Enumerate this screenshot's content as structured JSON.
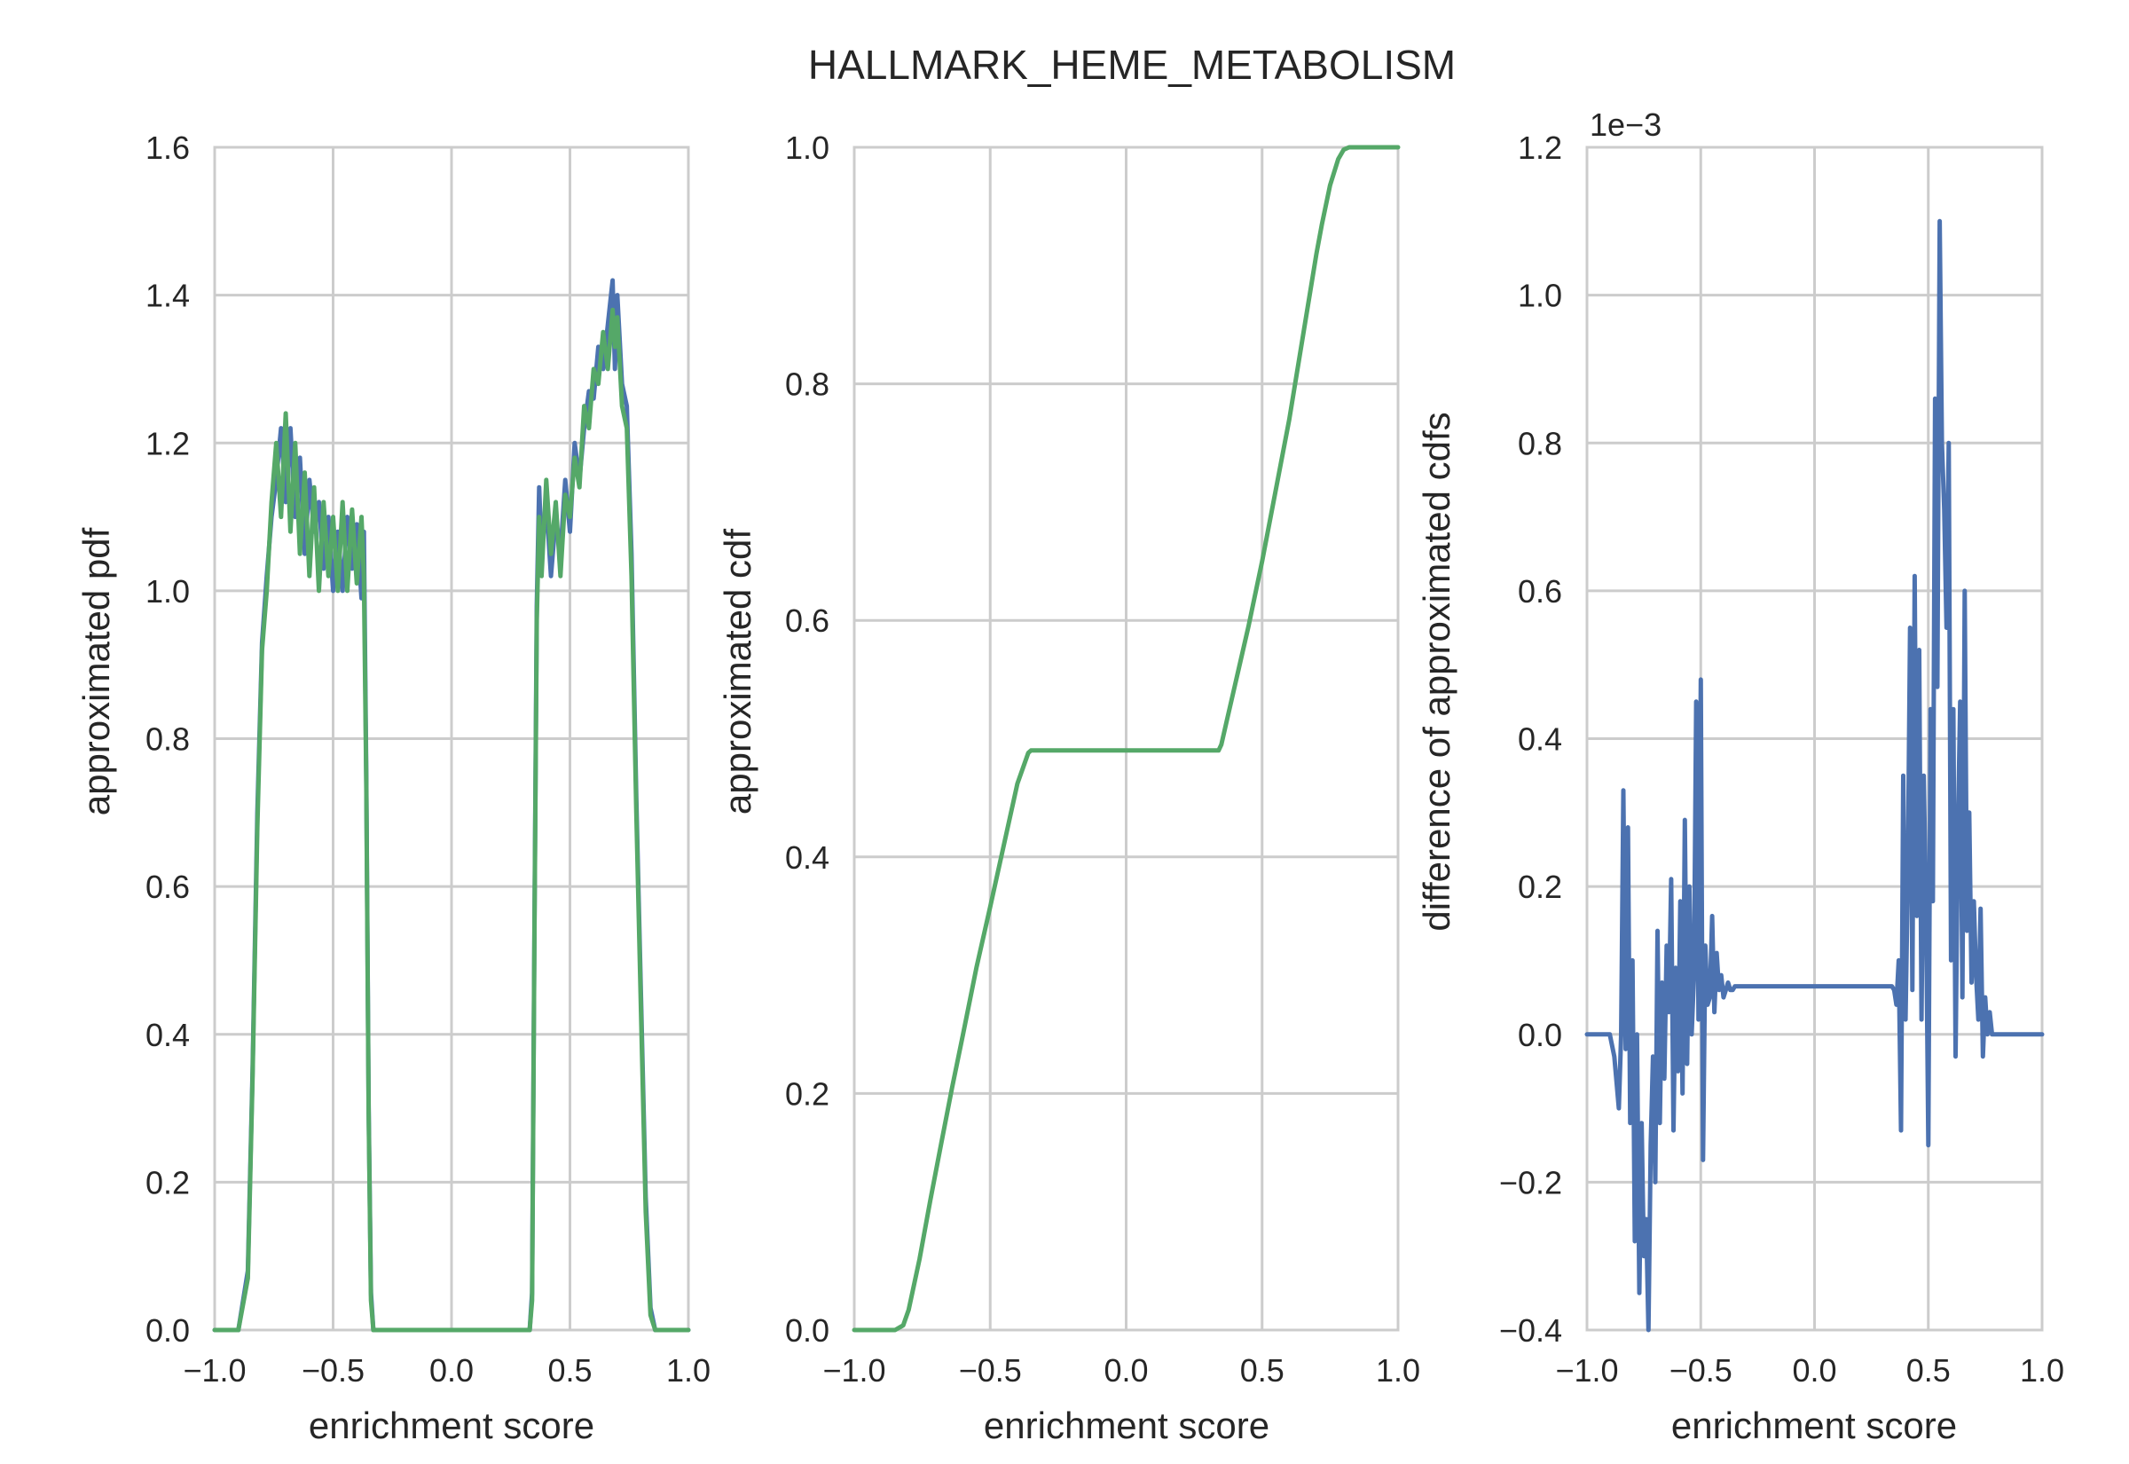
{
  "figure": {
    "title": "HALLMARK_HEME_METABOLISM",
    "colors": {
      "blue": "#4c72b0",
      "green": "#55a868",
      "grid": "#cccccc",
      "text": "#262626"
    }
  },
  "chart_data": [
    {
      "type": "line",
      "xlabel": "enrichment score",
      "ylabel": "approximated pdf",
      "xlim": [
        -1.0,
        1.0
      ],
      "ylim": [
        0.0,
        1.6
      ],
      "xticks": [
        "−1.0",
        "−0.5",
        "0.0",
        "0.5",
        "1.0"
      ],
      "yticks": [
        "0.0",
        "0.2",
        "0.4",
        "0.6",
        "0.8",
        "1.0",
        "1.2",
        "1.4",
        "1.6"
      ],
      "grid": true,
      "series": [
        {
          "color": "#4c72b0",
          "x": [
            -1.0,
            -0.9,
            -0.86,
            -0.84,
            -0.82,
            -0.8,
            -0.78,
            -0.76,
            -0.74,
            -0.72,
            -0.7,
            -0.68,
            -0.66,
            -0.64,
            -0.62,
            -0.6,
            -0.58,
            -0.56,
            -0.54,
            -0.52,
            -0.5,
            -0.48,
            -0.46,
            -0.44,
            -0.42,
            -0.4,
            -0.38,
            -0.37,
            -0.36,
            -0.35,
            -0.34,
            -0.33,
            0.0,
            0.33,
            0.34,
            0.35,
            0.36,
            0.37,
            0.38,
            0.4,
            0.42,
            0.44,
            0.46,
            0.48,
            0.5,
            0.52,
            0.54,
            0.56,
            0.58,
            0.6,
            0.62,
            0.64,
            0.66,
            0.68,
            0.69,
            0.7,
            0.72,
            0.74,
            0.76,
            0.78,
            0.8,
            0.82,
            0.84,
            0.86,
            0.9,
            1.0
          ],
          "y": [
            0.0,
            0.0,
            0.08,
            0.35,
            0.7,
            0.93,
            1.02,
            1.1,
            1.15,
            1.22,
            1.12,
            1.22,
            1.1,
            1.18,
            1.05,
            1.15,
            1.08,
            1.12,
            1.03,
            1.1,
            1.0,
            1.08,
            1.0,
            1.1,
            1.03,
            1.09,
            0.99,
            1.08,
            0.75,
            0.3,
            0.05,
            0.0,
            0.0,
            0.0,
            0.05,
            0.55,
            0.98,
            1.14,
            1.05,
            1.12,
            1.02,
            1.1,
            1.05,
            1.15,
            1.08,
            1.2,
            1.15,
            1.22,
            1.27,
            1.26,
            1.33,
            1.3,
            1.36,
            1.42,
            1.3,
            1.4,
            1.28,
            1.25,
            1.05,
            0.72,
            0.45,
            0.18,
            0.03,
            0.0,
            0.0,
            0.0
          ]
        },
        {
          "color": "#55a868",
          "x": [
            -1.0,
            -0.9,
            -0.86,
            -0.84,
            -0.82,
            -0.8,
            -0.78,
            -0.76,
            -0.74,
            -0.72,
            -0.7,
            -0.68,
            -0.66,
            -0.64,
            -0.62,
            -0.6,
            -0.58,
            -0.56,
            -0.54,
            -0.52,
            -0.5,
            -0.48,
            -0.46,
            -0.44,
            -0.42,
            -0.4,
            -0.38,
            -0.37,
            -0.36,
            -0.35,
            -0.34,
            -0.33,
            0.0,
            0.33,
            0.34,
            0.35,
            0.36,
            0.37,
            0.38,
            0.4,
            0.42,
            0.44,
            0.46,
            0.48,
            0.5,
            0.52,
            0.54,
            0.56,
            0.58,
            0.6,
            0.62,
            0.64,
            0.66,
            0.68,
            0.69,
            0.7,
            0.72,
            0.74,
            0.76,
            0.78,
            0.8,
            0.82,
            0.84,
            0.86,
            0.9,
            1.0
          ],
          "y": [
            0.0,
            0.0,
            0.07,
            0.34,
            0.68,
            0.92,
            1.0,
            1.12,
            1.2,
            1.1,
            1.24,
            1.08,
            1.2,
            1.05,
            1.16,
            1.02,
            1.14,
            1.0,
            1.12,
            1.02,
            1.1,
            1.0,
            1.12,
            1.0,
            1.11,
            1.01,
            1.1,
            1.02,
            0.74,
            0.29,
            0.04,
            0.0,
            0.0,
            0.0,
            0.04,
            0.54,
            0.96,
            1.1,
            1.02,
            1.15,
            1.05,
            1.12,
            1.02,
            1.13,
            1.1,
            1.18,
            1.14,
            1.25,
            1.22,
            1.3,
            1.28,
            1.35,
            1.3,
            1.38,
            1.33,
            1.37,
            1.25,
            1.22,
            1.02,
            0.7,
            0.43,
            0.16,
            0.02,
            0.0,
            0.0,
            0.0
          ]
        }
      ]
    },
    {
      "type": "line",
      "xlabel": "enrichment score",
      "ylabel": "approximated cdf",
      "xlim": [
        -1.0,
        1.0
      ],
      "ylim": [
        0.0,
        1.0
      ],
      "xticks": [
        "−1.0",
        "−0.5",
        "0.0",
        "0.5",
        "1.0"
      ],
      "yticks": [
        "0.0",
        "0.2",
        "0.4",
        "0.6",
        "0.8",
        "1.0"
      ],
      "grid": true,
      "series": [
        {
          "color": "#55a868",
          "x": [
            -1.0,
            -0.85,
            -0.82,
            -0.8,
            -0.76,
            -0.72,
            -0.68,
            -0.64,
            -0.6,
            -0.55,
            -0.5,
            -0.45,
            -0.4,
            -0.36,
            -0.35,
            0.34,
            0.35,
            0.37,
            0.4,
            0.45,
            0.5,
            0.55,
            0.6,
            0.65,
            0.7,
            0.72,
            0.75,
            0.78,
            0.8,
            0.82,
            0.85,
            1.0
          ],
          "y": [
            0.0,
            0.0,
            0.004,
            0.017,
            0.06,
            0.11,
            0.158,
            0.205,
            0.25,
            0.307,
            0.358,
            0.41,
            0.462,
            0.488,
            0.49,
            0.49,
            0.495,
            0.515,
            0.545,
            0.595,
            0.65,
            0.71,
            0.77,
            0.84,
            0.91,
            0.935,
            0.968,
            0.99,
            0.998,
            1.0,
            1.0,
            1.0
          ]
        }
      ]
    },
    {
      "type": "line",
      "xlabel": "enrichment score",
      "ylabel": "difference of approximated cdfs",
      "offset_text": "1e−3",
      "xlim": [
        -1.0,
        1.0
      ],
      "ylim": [
        -0.4,
        1.2
      ],
      "xticks": [
        "−1.0",
        "−0.5",
        "0.0",
        "0.5",
        "1.0"
      ],
      "yticks": [
        "−0.4",
        "−0.2",
        "0.0",
        "0.2",
        "0.4",
        "0.6",
        "0.8",
        "1.0",
        "1.2"
      ],
      "grid": true,
      "series": [
        {
          "color": "#4c72b0",
          "x": [
            -1.0,
            -0.9,
            -0.88,
            -0.86,
            -0.85,
            -0.84,
            -0.83,
            -0.82,
            -0.81,
            -0.8,
            -0.79,
            -0.78,
            -0.77,
            -0.76,
            -0.75,
            -0.74,
            -0.73,
            -0.72,
            -0.71,
            -0.7,
            -0.69,
            -0.68,
            -0.67,
            -0.66,
            -0.65,
            -0.64,
            -0.63,
            -0.62,
            -0.61,
            -0.6,
            -0.59,
            -0.58,
            -0.57,
            -0.56,
            -0.55,
            -0.54,
            -0.53,
            -0.52,
            -0.51,
            -0.5,
            -0.49,
            -0.48,
            -0.47,
            -0.46,
            -0.45,
            -0.44,
            -0.43,
            -0.42,
            -0.41,
            -0.4,
            -0.39,
            -0.38,
            -0.37,
            -0.36,
            -0.35,
            0.34,
            0.35,
            0.36,
            0.37,
            0.38,
            0.39,
            0.4,
            0.41,
            0.42,
            0.43,
            0.44,
            0.45,
            0.46,
            0.47,
            0.48,
            0.49,
            0.5,
            0.51,
            0.52,
            0.53,
            0.54,
            0.55,
            0.56,
            0.57,
            0.58,
            0.59,
            0.6,
            0.61,
            0.62,
            0.63,
            0.64,
            0.65,
            0.66,
            0.67,
            0.68,
            0.69,
            0.7,
            0.71,
            0.72,
            0.73,
            0.74,
            0.75,
            0.76,
            0.77,
            0.78,
            0.79,
            0.8,
            0.81,
            0.82,
            0.83,
            0.84,
            0.85,
            0.86,
            0.88,
            0.9,
            1.0
          ],
          "y": [
            0.0,
            0.0,
            -0.03,
            -0.1,
            0.0,
            0.33,
            -0.02,
            0.28,
            -0.12,
            0.1,
            -0.28,
            0.0,
            -0.35,
            -0.12,
            -0.3,
            -0.25,
            -0.4,
            -0.15,
            -0.03,
            -0.2,
            0.14,
            -0.12,
            0.07,
            -0.06,
            0.12,
            0.03,
            0.21,
            -0.13,
            0.09,
            -0.05,
            0.18,
            -0.08,
            0.29,
            -0.04,
            0.2,
            0.0,
            0.08,
            0.45,
            0.02,
            0.48,
            -0.17,
            0.12,
            0.04,
            0.05,
            0.16,
            0.03,
            0.11,
            0.06,
            0.08,
            0.05,
            0.06,
            0.07,
            0.06,
            0.06,
            0.065,
            0.065,
            0.06,
            0.04,
            0.1,
            -0.13,
            0.35,
            0.02,
            0.22,
            0.55,
            0.06,
            0.62,
            0.16,
            0.52,
            0.02,
            0.35,
            0.18,
            -0.15,
            0.44,
            0.18,
            0.86,
            0.47,
            1.1,
            0.8,
            0.71,
            0.55,
            0.8,
            0.1,
            0.44,
            -0.03,
            0.27,
            0.45,
            0.05,
            0.6,
            0.14,
            0.3,
            0.07,
            0.18,
            0.08,
            0.02,
            0.17,
            -0.03,
            0.05,
            0.0,
            0.03,
            0.0,
            0.0,
            0.0,
            0.0,
            0.0,
            0.0,
            0.0,
            0.0,
            0.0,
            0.0,
            0.0,
            0.0
          ]
        }
      ]
    }
  ]
}
